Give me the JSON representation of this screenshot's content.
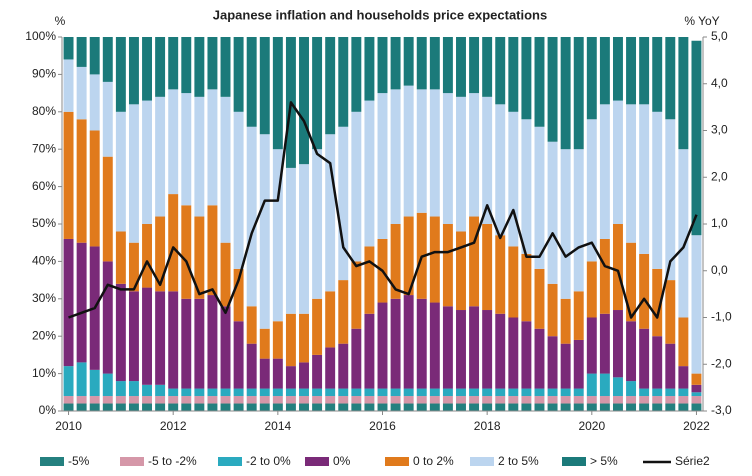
{
  "chart_data": {
    "type": "stacked_bar_line",
    "title": "Japanese inflation and households price expectations",
    "y_label": "%",
    "y2_label": "% YoY",
    "categories": [
      "2010",
      null,
      null,
      null,
      null,
      null,
      null,
      null,
      "2012",
      null,
      null,
      null,
      null,
      null,
      null,
      null,
      "2014",
      null,
      null,
      null,
      null,
      null,
      null,
      null,
      "2016",
      null,
      null,
      null,
      null,
      null,
      null,
      null,
      "2018",
      null,
      null,
      null,
      null,
      null,
      null,
      null,
      "2020",
      null,
      null,
      null,
      null,
      null,
      null,
      null,
      "2022"
    ],
    "ylim": [
      0,
      100
    ],
    "yticks": [
      {
        "value": 0,
        "label": "0%"
      },
      {
        "value": 10,
        "label": "10%"
      },
      {
        "value": 20,
        "label": "20%"
      },
      {
        "value": 30,
        "label": "30%"
      },
      {
        "value": 40,
        "label": "40%"
      },
      {
        "value": 50,
        "label": "50%"
      },
      {
        "value": 60,
        "label": "60%"
      },
      {
        "value": 70,
        "label": "70%"
      },
      {
        "value": 80,
        "label": "80%"
      },
      {
        "value": 90,
        "label": "90%"
      },
      {
        "value": 100,
        "label": "100%"
      }
    ],
    "y2lim": [
      -3,
      5
    ],
    "y2ticks": [
      {
        "value": -3,
        "label": "-3,0"
      },
      {
        "value": -2,
        "label": "-2,0"
      },
      {
        "value": -1,
        "label": "-1,0"
      },
      {
        "value": 0,
        "label": "0,0"
      },
      {
        "value": 1,
        "label": "1,0"
      },
      {
        "value": 2,
        "label": "2,0"
      },
      {
        "value": 3,
        "label": "3,0"
      },
      {
        "value": 4,
        "label": "4,0"
      },
      {
        "value": 5,
        "label": "5,0"
      }
    ],
    "series": [
      {
        "name": "-5%",
        "color": "#24807f",
        "values": [
          2,
          2,
          2,
          2,
          2,
          2,
          2,
          2,
          2,
          2,
          2,
          2,
          2,
          2,
          2,
          2,
          2,
          2,
          2,
          2,
          2,
          2,
          2,
          2,
          2,
          2,
          2,
          2,
          2,
          2,
          2,
          2,
          2,
          2,
          2,
          2,
          2,
          2,
          2,
          2,
          2,
          2,
          2,
          2,
          2,
          2,
          2,
          2,
          2
        ]
      },
      {
        "name": "-5 to -2%",
        "color": "#d597a8",
        "values": [
          2,
          2,
          2,
          2,
          2,
          2,
          2,
          2,
          2,
          2,
          2,
          2,
          2,
          2,
          2,
          2,
          2,
          2,
          2,
          2,
          2,
          2,
          2,
          2,
          2,
          2,
          2,
          2,
          2,
          2,
          2,
          2,
          2,
          2,
          2,
          2,
          2,
          2,
          2,
          2,
          2,
          2,
          2,
          2,
          2,
          2,
          2,
          2,
          2
        ]
      },
      {
        "name": "-2 to 0%",
        "color": "#2aaabf",
        "values": [
          8,
          9,
          7,
          6,
          4,
          4,
          3,
          3,
          2,
          2,
          2,
          2,
          2,
          2,
          2,
          2,
          2,
          2,
          2,
          2,
          2,
          2,
          2,
          2,
          2,
          2,
          2,
          2,
          2,
          2,
          2,
          2,
          2,
          2,
          2,
          2,
          2,
          2,
          2,
          2,
          6,
          6,
          5,
          4,
          2,
          2,
          2,
          2,
          1
        ]
      },
      {
        "name": "0%",
        "color": "#7a2a78",
        "values": [
          34,
          32,
          33,
          30,
          26,
          24,
          26,
          25,
          26,
          24,
          24,
          25,
          22,
          18,
          12,
          8,
          8,
          6,
          7,
          9,
          11,
          12,
          16,
          20,
          23,
          24,
          25,
          24,
          23,
          22,
          21,
          22,
          21,
          20,
          19,
          18,
          16,
          14,
          12,
          13,
          15,
          16,
          18,
          16,
          16,
          14,
          12,
          6,
          2
        ]
      },
      {
        "name": "0 to 2%",
        "color": "#e07a1c",
        "values": [
          34,
          33,
          31,
          28,
          14,
          13,
          17,
          20,
          26,
          25,
          22,
          24,
          17,
          14,
          10,
          8,
          10,
          14,
          13,
          15,
          15,
          17,
          18,
          18,
          17,
          20,
          21,
          23,
          23,
          22,
          21,
          24,
          23,
          21,
          19,
          18,
          16,
          14,
          12,
          13,
          15,
          20,
          23,
          21,
          20,
          18,
          17,
          13,
          3
        ]
      },
      {
        "name": "2 to 5%",
        "color": "#bcd5ef",
        "values": [
          14,
          14,
          15,
          20,
          32,
          37,
          33,
          32,
          28,
          30,
          32,
          31,
          39,
          42,
          48,
          52,
          46,
          39,
          40,
          40,
          42,
          41,
          40,
          39,
          39,
          36,
          35,
          33,
          34,
          35,
          36,
          33,
          34,
          35,
          36,
          36,
          38,
          38,
          40,
          38,
          38,
          36,
          33,
          37,
          40,
          42,
          43,
          45,
          37
        ]
      },
      {
        "name": "> 5%",
        "color": "#1b7a7a",
        "values": [
          6,
          8,
          10,
          12,
          20,
          18,
          17,
          16,
          14,
          15,
          16,
          14,
          16,
          20,
          24,
          26,
          30,
          35,
          34,
          30,
          26,
          24,
          20,
          17,
          15,
          14,
          13,
          14,
          14,
          15,
          16,
          15,
          16,
          18,
          20,
          22,
          24,
          28,
          30,
          30,
          22,
          18,
          17,
          18,
          18,
          20,
          22,
          30,
          52
        ]
      },
      {
        "name": "Série2",
        "color": "#111111",
        "axis": "y2",
        "values": [
          -1.0,
          -0.9,
          -0.8,
          -0.3,
          -0.4,
          -0.4,
          0.2,
          -0.3,
          0.5,
          0.2,
          -0.5,
          -0.4,
          -0.9,
          -0.2,
          0.8,
          1.5,
          1.5,
          3.6,
          3.2,
          2.5,
          2.3,
          0.5,
          0.1,
          0.2,
          0.0,
          -0.4,
          -0.5,
          0.3,
          0.4,
          0.4,
          0.5,
          0.6,
          1.4,
          0.7,
          1.3,
          0.3,
          0.3,
          0.8,
          0.3,
          0.5,
          0.6,
          0.1,
          0.0,
          -1.0,
          -0.6,
          -1.0,
          0.2,
          0.5,
          1.2
        ]
      }
    ]
  }
}
